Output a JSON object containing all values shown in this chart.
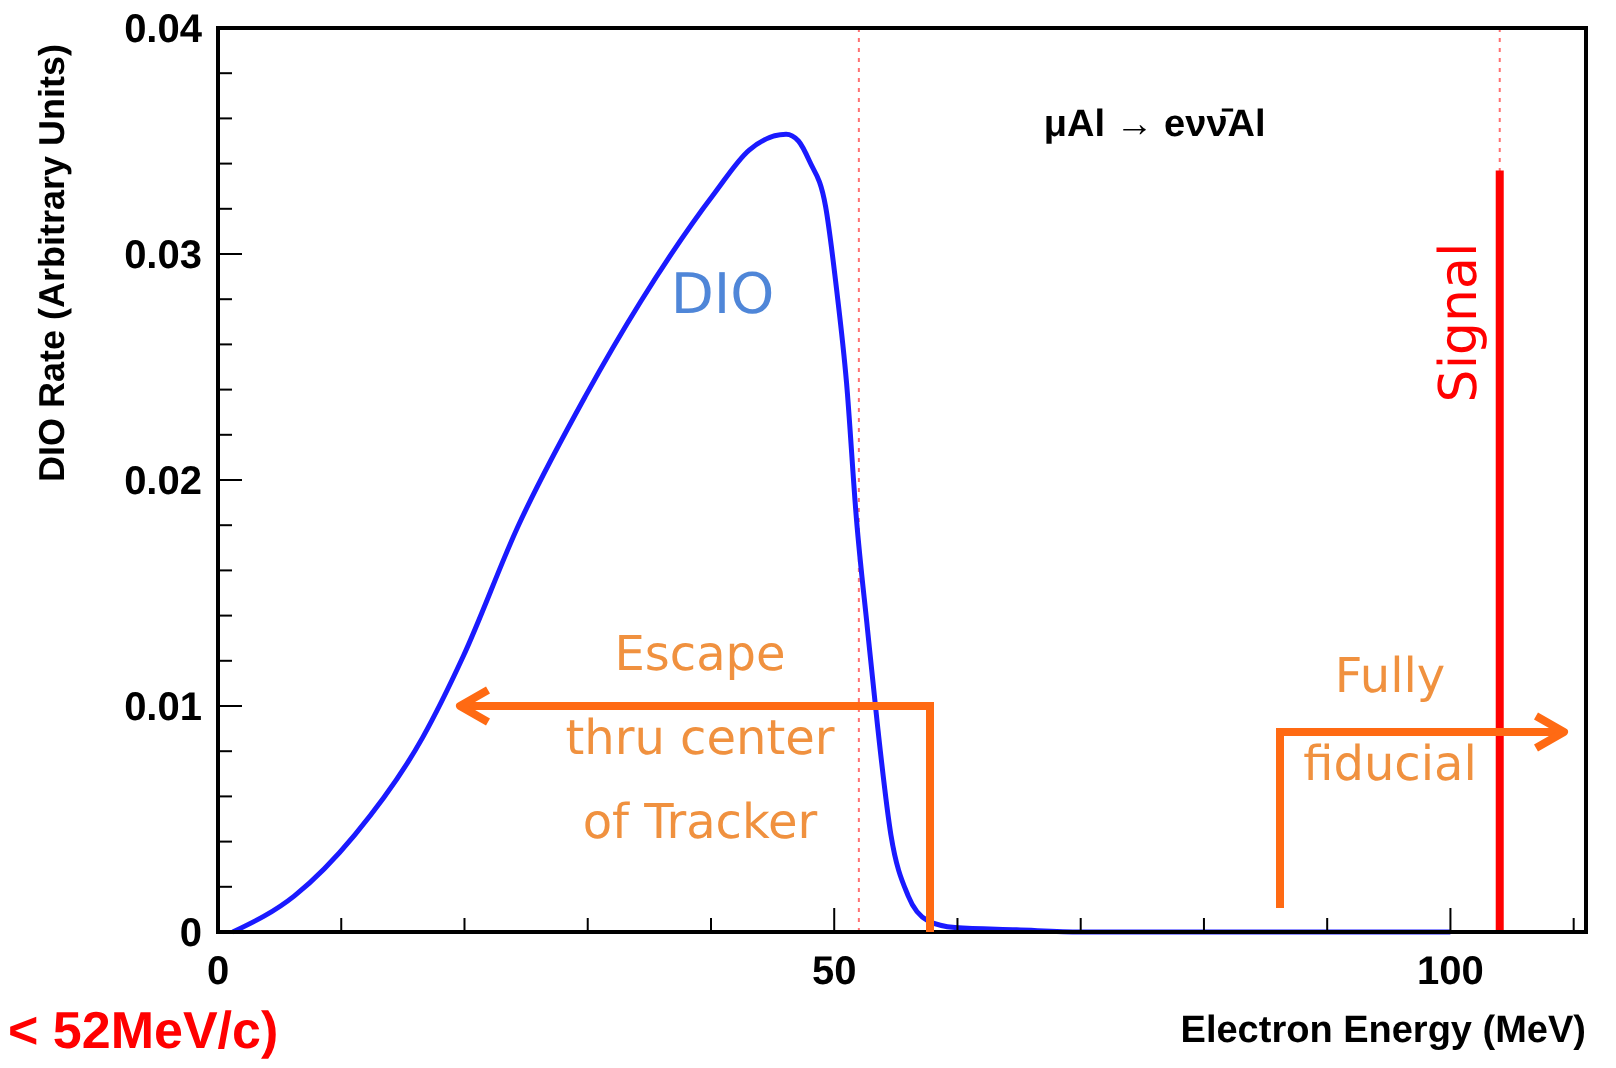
{
  "chart_data": {
    "type": "line",
    "title": "μAl → eνν̄Al",
    "xlabel": "Electron Energy (MeV)",
    "ylabel": "DIO Rate (Arbitrary Units)",
    "xlim": [
      0,
      111
    ],
    "ylim": [
      0,
      0.04
    ],
    "xticks": [
      0,
      {
        "value": 10,
        "label": null
      },
      {
        "value": 20,
        "label": null
      },
      {
        "value": 30,
        "label": null
      },
      {
        "value": 40,
        "label": null
      },
      50,
      {
        "value": 60,
        "label": null
      },
      {
        "value": 70,
        "label": null
      },
      {
        "value": 80,
        "label": null
      },
      {
        "value": 90,
        "label": null
      },
      100,
      {
        "value": 110,
        "label": null
      }
    ],
    "yticks": [
      0,
      {
        "value": 0.002,
        "label": null
      },
      {
        "value": 0.004,
        "label": null
      },
      {
        "value": 0.006,
        "label": null
      },
      {
        "value": 0.008,
        "label": null
      },
      0.01,
      {
        "value": 0.012,
        "label": null
      },
      {
        "value": 0.014,
        "label": null
      },
      {
        "value": 0.016,
        "label": null
      },
      {
        "value": 0.018,
        "label": null
      },
      0.02,
      {
        "value": 0.022,
        "label": null
      },
      {
        "value": 0.024,
        "label": null
      },
      {
        "value": 0.026,
        "label": null
      },
      {
        "value": 0.028,
        "label": null
      },
      0.03,
      {
        "value": 0.032,
        "label": null
      },
      {
        "value": 0.034,
        "label": null
      },
      {
        "value": 0.036,
        "label": null
      },
      {
        "value": 0.038,
        "label": null
      },
      0.04
    ],
    "grid": false,
    "series": [
      {
        "name": "DIO",
        "color": "#1a1aff",
        "x": [
          1.2,
          6.2,
          11.1,
          16.6,
          19.9,
          24.3,
          29.8,
          34.3,
          40.3,
          43.1,
          46.1,
          47.1,
          48,
          49.3,
          50.2,
          51,
          51.8,
          52.7,
          53.5,
          54.6,
          56,
          57.6,
          59.8,
          64.8,
          70,
          80,
          90,
          100
        ],
        "values": [
          0,
          0.0016,
          0.0043,
          0.0086,
          0.0122,
          0.0179,
          0.0237,
          0.0279,
          0.0327,
          0.0346,
          0.0353,
          0.035,
          0.0341,
          0.0321,
          0.0284,
          0.0243,
          0.0183,
          0.0134,
          0.0092,
          0.0043,
          0.0016,
          0.0005,
          0.0002,
          0.0001,
          0,
          0,
          0,
          0
        ]
      },
      {
        "name": "Signal",
        "color": "#ff0000",
        "x": [
          104,
          104
        ],
        "values": [
          0,
          0.0337
        ]
      }
    ],
    "ref_lines": [
      {
        "axis": "x",
        "value": 52,
        "color": "#ff7070",
        "line_style": "dotted"
      },
      {
        "axis": "x",
        "value": 104,
        "color": "#ff7070",
        "line_style": "dotted"
      }
    ],
    "annotations": [
      "Escape\nthru center\nof Tracker",
      "Fully\nfiducial",
      "< 52MeV/c)"
    ]
  }
}
